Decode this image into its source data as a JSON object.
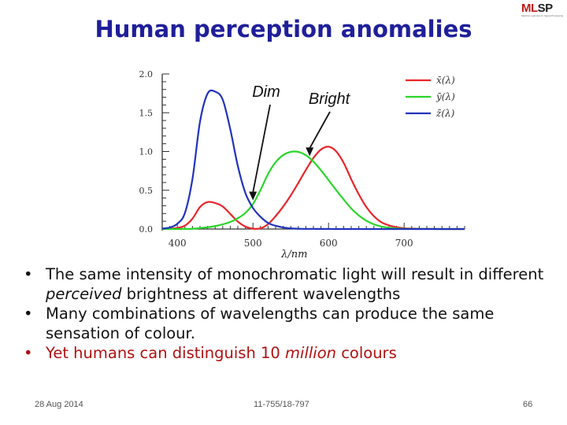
{
  "slide": {
    "title": "Human perception anomalies",
    "logo_text_a": "ML",
    "logo_text_b": "SP",
    "logo_subtext": "Machine Learning for Signal Processing",
    "bullets": [
      {
        "pre": "The same intensity of monochromatic light will result in different ",
        "em": "perceived",
        "post": " brightness at different wavelengths"
      },
      {
        "pre": "Many combinations of wavelengths can produce the same sensation of colour.",
        "em": "",
        "post": ""
      },
      {
        "pre": "Yet humans can distinguish 10 ",
        "em": "million",
        "post": " colours"
      }
    ],
    "footer_date": "28 Aug 2014",
    "footer_course": "11-755/18-797",
    "page_number": "66"
  },
  "chart_data": {
    "type": "line",
    "xlabel": "λ/nm",
    "ylabel": "",
    "xlim": [
      380,
      780
    ],
    "ylim": [
      0,
      2.0
    ],
    "x_ticks": [
      400,
      500,
      600,
      700
    ],
    "y_ticks": [
      "0.0",
      "0.5",
      "1.0",
      "1.5",
      "2.0"
    ],
    "legend_position": "top-right",
    "annotations": [
      {
        "label": "Dim",
        "x": 500,
        "y": 0.35
      },
      {
        "label": "Bright",
        "x": 575,
        "y": 0.92
      }
    ],
    "x": [
      380,
      390,
      400,
      410,
      420,
      430,
      440,
      450,
      460,
      470,
      480,
      490,
      500,
      510,
      520,
      530,
      540,
      550,
      560,
      570,
      580,
      590,
      600,
      610,
      620,
      630,
      640,
      650,
      660,
      670,
      680,
      690,
      700,
      710,
      720,
      730,
      740,
      750,
      760,
      770,
      780
    ],
    "series": [
      {
        "name": "x̄(λ)",
        "color": "#e8262a",
        "values": [
          0.001,
          0.004,
          0.014,
          0.044,
          0.134,
          0.284,
          0.348,
          0.336,
          0.291,
          0.195,
          0.096,
          0.032,
          0.005,
          0.009,
          0.063,
          0.166,
          0.29,
          0.433,
          0.595,
          0.762,
          0.916,
          1.026,
          1.062,
          1.003,
          0.854,
          0.642,
          0.448,
          0.284,
          0.165,
          0.087,
          0.047,
          0.023,
          0.011,
          0.006,
          0.003,
          0.001,
          0.001,
          0,
          0,
          0,
          0
        ]
      },
      {
        "name": "ȳ(λ)",
        "color": "#2ad62a",
        "values": [
          0,
          0,
          0,
          0.001,
          0.004,
          0.012,
          0.023,
          0.038,
          0.06,
          0.091,
          0.139,
          0.208,
          0.323,
          0.503,
          0.71,
          0.862,
          0.954,
          0.995,
          0.995,
          0.952,
          0.87,
          0.757,
          0.631,
          0.503,
          0.381,
          0.265,
          0.175,
          0.107,
          0.061,
          0.032,
          0.017,
          0.008,
          0.004,
          0.002,
          0.001,
          0.001,
          0,
          0,
          0,
          0,
          0
        ]
      },
      {
        "name": "z̄(λ)",
        "color": "#2233bb",
        "values": [
          0.006,
          0.02,
          0.068,
          0.207,
          0.646,
          1.386,
          1.747,
          1.772,
          1.669,
          1.288,
          0.813,
          0.465,
          0.272,
          0.158,
          0.078,
          0.042,
          0.02,
          0.009,
          0.004,
          0.002,
          0.002,
          0.001,
          0.001,
          0,
          0,
          0,
          0,
          0,
          0,
          0,
          0,
          0,
          0,
          0,
          0,
          0,
          0,
          0,
          0,
          0,
          0
        ]
      }
    ]
  }
}
